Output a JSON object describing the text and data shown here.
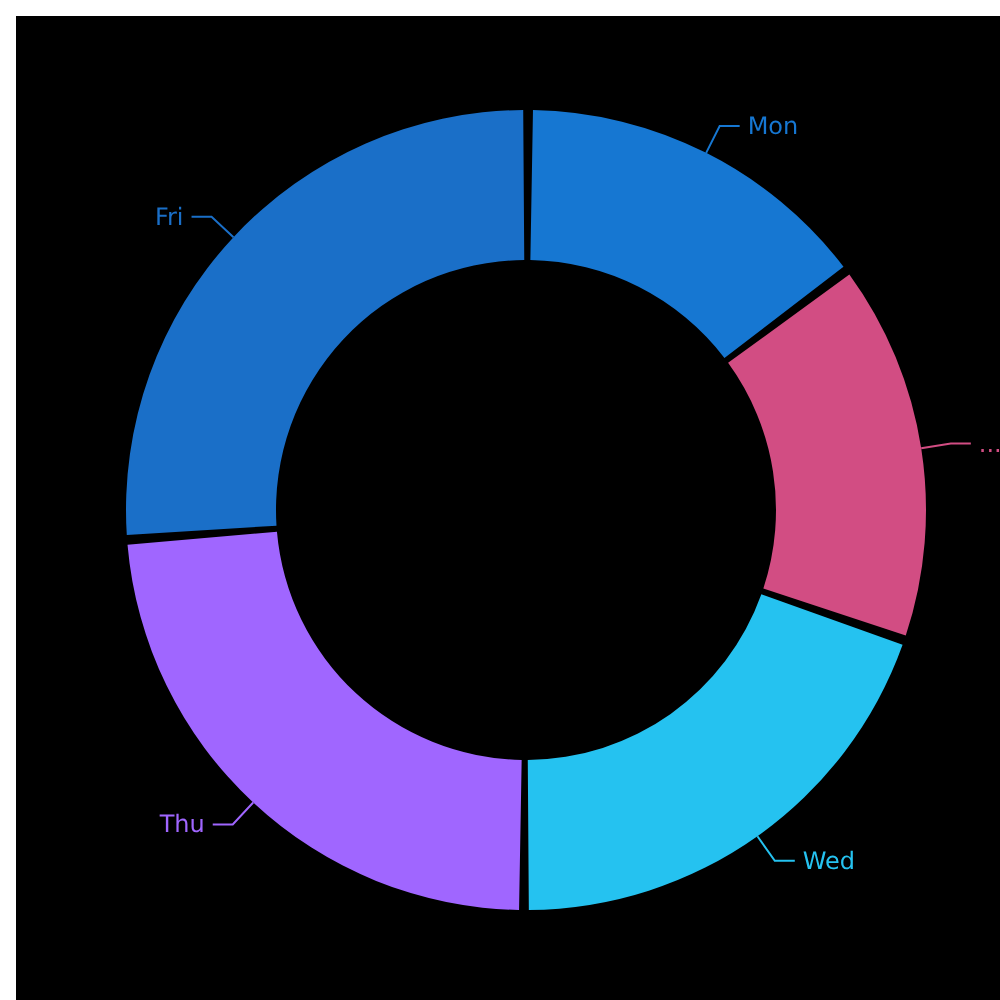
{
  "chart_data": {
    "type": "donut",
    "categories": [
      "Mon",
      "...",
      "Wed",
      "Thu",
      "Fri"
    ],
    "values": [
      14.6,
      15.4,
      19.8,
      23.8,
      26.4
    ],
    "colors": [
      "#1677d2",
      "#d24d83",
      "#25c2f0",
      "#a066ff",
      "#1a6fc8"
    ]
  }
}
